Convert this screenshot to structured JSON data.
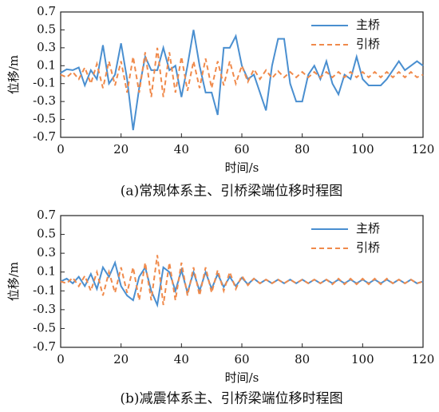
{
  "chart_data": [
    {
      "type": "line",
      "caption": "(a)常规体系主、引桥梁端位移时程图",
      "xlabel": "时间/s",
      "ylabel": "位移/m",
      "x": [
        0,
        2,
        4,
        6,
        8,
        10,
        12,
        14,
        16,
        18,
        20,
        22,
        24,
        26,
        28,
        30,
        32,
        34,
        36,
        38,
        40,
        42,
        44,
        46,
        48,
        50,
        52,
        54,
        56,
        58,
        60,
        62,
        64,
        66,
        68,
        70,
        72,
        74,
        76,
        78,
        80,
        82,
        84,
        86,
        88,
        90,
        92,
        94,
        96,
        98,
        100,
        102,
        104,
        106,
        108,
        110,
        112,
        114,
        116,
        118,
        120
      ],
      "series": [
        {
          "name": "主桥",
          "color": "#4a8fd0",
          "dash": false,
          "values": [
            0.02,
            0.06,
            0.05,
            0.08,
            -0.12,
            0.05,
            -0.05,
            0.33,
            -0.1,
            0.0,
            0.35,
            -0.05,
            -0.62,
            -0.15,
            0.2,
            0.05,
            0.05,
            0.3,
            0.05,
            0.1,
            -0.25,
            0.1,
            0.5,
            0.1,
            -0.2,
            -0.2,
            -0.45,
            0.3,
            0.3,
            0.43,
            0.1,
            -0.05,
            0.0,
            -0.2,
            -0.4,
            0.1,
            0.4,
            0.4,
            -0.1,
            -0.3,
            -0.3,
            0.0,
            0.1,
            -0.05,
            0.15,
            -0.1,
            -0.22,
            0.0,
            -0.05,
            0.2,
            -0.05,
            -0.12,
            -0.12,
            -0.12,
            -0.05,
            0.05,
            0.15,
            0.05,
            0.1,
            0.15,
            0.1
          ]
        },
        {
          "name": "引桥",
          "color": "#f08a4b",
          "dash": true,
          "values": [
            0,
            -0.03,
            0.03,
            -0.05,
            0.08,
            -0.1,
            0.12,
            -0.15,
            0.15,
            -0.12,
            0.15,
            -0.2,
            0.2,
            -0.2,
            0.25,
            -0.25,
            0.3,
            -0.25,
            0.25,
            -0.2,
            0.2,
            -0.18,
            0.15,
            -0.15,
            0.18,
            -0.15,
            0.15,
            -0.12,
            0.15,
            -0.1,
            0.1,
            -0.08,
            0.06,
            -0.05,
            0.05,
            -0.04,
            0.04,
            -0.03,
            0.03,
            -0.03,
            0.03,
            -0.03,
            0.03,
            -0.03,
            0.03,
            -0.03,
            0.03,
            -0.03,
            0.03,
            -0.03,
            0.03,
            -0.03,
            0.03,
            -0.03,
            0.03,
            -0.03,
            0.03,
            -0.03,
            0.03,
            -0.03,
            0.0
          ]
        }
      ],
      "xlim": [
        0,
        120
      ],
      "ylim": [
        -0.7,
        0.7
      ],
      "xticks": [
        0,
        20,
        40,
        60,
        80,
        100,
        120
      ],
      "yticks": [
        -0.7,
        -0.5,
        -0.3,
        -0.1,
        0.1,
        0.3,
        0.5,
        0.7
      ],
      "legend": "upper right"
    },
    {
      "type": "line",
      "caption": "(b)减震体系主、引桥梁端位移时程图",
      "xlabel": "时间/s",
      "ylabel": "位移/m",
      "x": [
        0,
        2,
        4,
        6,
        8,
        10,
        12,
        14,
        16,
        18,
        20,
        22,
        24,
        26,
        28,
        30,
        32,
        34,
        36,
        38,
        40,
        42,
        44,
        46,
        48,
        50,
        52,
        54,
        56,
        58,
        60,
        62,
        64,
        66,
        68,
        70,
        72,
        74,
        76,
        78,
        80,
        82,
        84,
        86,
        88,
        90,
        92,
        94,
        96,
        98,
        100,
        102,
        104,
        106,
        108,
        110,
        112,
        114,
        116,
        118,
        120
      ],
      "series": [
        {
          "name": "主桥",
          "color": "#4a8fd0",
          "dash": false,
          "values": [
            0,
            0.03,
            -0.02,
            0.05,
            -0.05,
            0.08,
            -0.08,
            0.15,
            0.05,
            0.2,
            -0.05,
            -0.15,
            -0.2,
            0.05,
            0.15,
            -0.1,
            -0.25,
            0.15,
            0.1,
            -0.1,
            0.12,
            -0.12,
            0.1,
            -0.1,
            0.1,
            -0.08,
            0.08,
            -0.06,
            0.05,
            -0.05,
            0.04,
            -0.03,
            0.03,
            -0.02,
            0.02,
            -0.02,
            0.02,
            -0.02,
            0.02,
            -0.02,
            0.02,
            -0.02,
            0.02,
            -0.02,
            0.02,
            -0.02,
            0.02,
            -0.02,
            0.02,
            -0.02,
            0.02,
            -0.02,
            0.02,
            -0.02,
            0.02,
            -0.02,
            0.02,
            -0.02,
            0.02,
            -0.02,
            0
          ]
        },
        {
          "name": "引桥",
          "color": "#f08a4b",
          "dash": true,
          "values": [
            0,
            -0.02,
            0.04,
            -0.05,
            0.06,
            -0.1,
            0.1,
            -0.15,
            0.1,
            -0.12,
            0.15,
            -0.12,
            0.15,
            -0.2,
            0.2,
            -0.2,
            0.28,
            -0.25,
            0.2,
            -0.2,
            0.2,
            -0.15,
            0.15,
            -0.15,
            0.15,
            -0.12,
            0.12,
            -0.1,
            0.1,
            -0.08,
            0.06,
            -0.04,
            0.03,
            -0.02,
            0.02,
            -0.02,
            0.02,
            -0.02,
            0.02,
            -0.02,
            0.02,
            -0.02,
            0.02,
            -0.02,
            0.02,
            -0.03,
            0.03,
            -0.03,
            0.03,
            -0.03,
            0.03,
            -0.03,
            0.03,
            -0.03,
            0.03,
            -0.02,
            0.02,
            -0.02,
            0.02,
            -0.02,
            0
          ]
        }
      ],
      "xlim": [
        0,
        120
      ],
      "ylim": [
        -0.7,
        0.7
      ],
      "xticks": [
        0,
        20,
        40,
        60,
        80,
        100,
        120
      ],
      "yticks": [
        -0.7,
        -0.5,
        -0.3,
        -0.1,
        0.1,
        0.3,
        0.5,
        0.7
      ],
      "legend": "upper right"
    }
  ]
}
